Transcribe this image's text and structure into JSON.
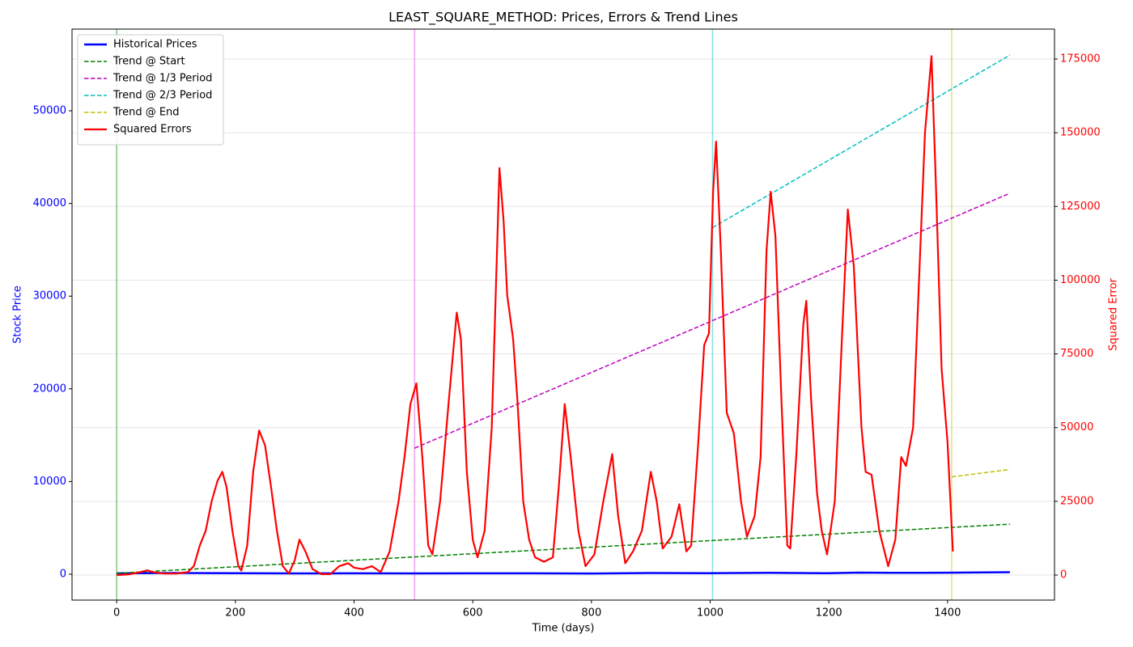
{
  "chart_data": {
    "type": "line",
    "title": "LEAST_SQUARE_METHOD: Prices, Errors & Trend Lines",
    "xlabel": "Time (days)",
    "ylabel": "Stock Price",
    "y2label": "Squared Error",
    "ylabel_color": "#0000ff",
    "y2label_color": "#ff0000",
    "xlim": [
      -75.25,
      1580.25
    ],
    "ylim": [
      -2792,
      58813
    ],
    "y2lim": [
      -8500,
      185150
    ],
    "xticks": [
      0,
      200,
      400,
      600,
      800,
      1000,
      1200,
      1400
    ],
    "yticks": [
      0,
      10000,
      20000,
      30000,
      40000,
      50000
    ],
    "y2ticks": [
      0,
      25000,
      50000,
      75000,
      100000,
      125000,
      150000,
      175000
    ],
    "grid": "y2",
    "legend": "upper left",
    "vlines": [
      0,
      502,
      1004,
      1407
    ],
    "vline_colors": [
      "#2ca02c",
      "#e066e0",
      "#33cccc",
      "#cccc33"
    ],
    "series": [
      {
        "name": "Historical Prices",
        "color": "#0000ff",
        "dash": false,
        "width": 2.5,
        "x": [
          0,
          100,
          200,
          300,
          400,
          500,
          600,
          700,
          800,
          900,
          1000,
          1100,
          1200,
          1250,
          1300,
          1400,
          1505
        ],
        "values": [
          100,
          130,
          110,
          90,
          95,
          90,
          95,
          100,
          80,
          130,
          110,
          150,
          110,
          170,
          150,
          160,
          220
        ]
      },
      {
        "name": "Trend @ Start",
        "color": "#008000",
        "dash": true,
        "width": 1.5,
        "x": [
          0,
          1505
        ],
        "values": [
          100,
          5400
        ]
      },
      {
        "name": "Trend @ 1/3 Period",
        "color": "#bf00bf",
        "dash": true,
        "width": 1.5,
        "x": [
          502,
          1505
        ],
        "values": [
          13600,
          41100
        ]
      },
      {
        "name": "Trend @ 2/3 Period",
        "color": "#00bfbf",
        "dash": true,
        "width": 1.5,
        "x": [
          1004,
          1505
        ],
        "values": [
          37400,
          56000
        ]
      },
      {
        "name": "Trend @ End",
        "color": "#bfbf00",
        "dash": true,
        "width": 1.5,
        "x": [
          1407,
          1505
        ],
        "values": [
          10500,
          11300
        ]
      },
      {
        "name": "Squared Errors",
        "color": "#ff0000",
        "dash": false,
        "width": 2.2,
        "axis": "y2",
        "x": [
          0,
          20,
          40,
          52,
          60,
          80,
          100,
          120,
          130,
          140,
          150,
          160,
          170,
          178,
          185,
          195,
          205,
          210,
          220,
          230,
          240,
          250,
          260,
          270,
          280,
          290,
          300,
          308,
          318,
          330,
          345,
          360,
          375,
          390,
          400,
          415,
          430,
          445,
          460,
          475,
          485,
          495,
          505,
          515,
          525,
          532,
          545,
          560,
          573,
          580,
          590,
          600,
          608,
          620,
          632,
          645,
          652,
          658,
          668,
          675,
          685,
          695,
          705,
          720,
          735,
          745,
          755,
          765,
          778,
          790,
          805,
          820,
          835,
          845,
          857,
          870,
          885,
          900,
          910,
          920,
          935,
          948,
          960,
          968,
          980,
          990,
          998,
          1005,
          1010,
          1018,
          1028,
          1040,
          1052,
          1062,
          1075,
          1085,
          1095,
          1102,
          1110,
          1120,
          1130,
          1135,
          1145,
          1157,
          1162,
          1170,
          1180,
          1188,
          1197,
          1210,
          1222,
          1232,
          1242,
          1255,
          1262,
          1272,
          1285,
          1300,
          1312,
          1322,
          1330,
          1342,
          1352,
          1362,
          1373,
          1380,
          1390,
          1400,
          1409
        ],
        "values": [
          0,
          200,
          1000,
          1600,
          1000,
          500,
          500,
          1000,
          3000,
          10000,
          15000,
          25000,
          32000,
          35000,
          30000,
          15000,
          3000,
          1500,
          10000,
          35000,
          49000,
          44000,
          30000,
          15000,
          3000,
          500,
          5000,
          12000,
          8000,
          2000,
          300,
          300,
          3000,
          4000,
          2500,
          2000,
          3000,
          1000,
          8000,
          25000,
          40000,
          58000,
          65000,
          40000,
          10000,
          7000,
          25000,
          60000,
          89000,
          80000,
          35000,
          12000,
          6000,
          15000,
          50000,
          138000,
          120000,
          95000,
          80000,
          60000,
          25000,
          12000,
          6000,
          4500,
          6000,
          30000,
          58000,
          40000,
          15000,
          3000,
          7000,
          25000,
          41000,
          20000,
          4000,
          8000,
          15000,
          35000,
          25000,
          9000,
          13000,
          24000,
          8000,
          10000,
          45000,
          78000,
          82000,
          130000,
          147000,
          110000,
          55000,
          48000,
          25000,
          13000,
          20000,
          40000,
          110000,
          130000,
          115000,
          60000,
          10000,
          9000,
          40000,
          85000,
          93000,
          60000,
          28000,
          15000,
          7000,
          25000,
          80000,
          124000,
          105000,
          50000,
          35000,
          34000,
          15000,
          3000,
          12000,
          40000,
          37000,
          50000,
          100000,
          150000,
          176000,
          135000,
          70000,
          45000,
          8000
        ]
      }
    ]
  }
}
